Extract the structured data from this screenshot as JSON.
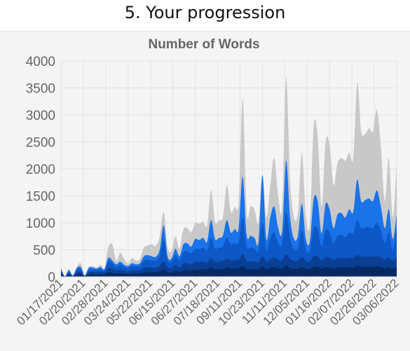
{
  "page": {
    "heading": "5. Your progression"
  },
  "chart_data": {
    "type": "area",
    "title": "Number of Words",
    "xlabel": "",
    "ylabel": "",
    "ylim": [
      0,
      4000
    ],
    "yticks": [
      0,
      500,
      1000,
      1500,
      2000,
      2500,
      3000,
      3500,
      4000
    ],
    "x_tick_labels": [
      "01/17/2021",
      "02/20/2021",
      "02/28/2021",
      "03/24/2021",
      "05/22/2021",
      "06/15/2021",
      "06/27/2021",
      "07/18/2021",
      "09/11/2021",
      "10/23/2021",
      "11/11/2021",
      "12/05/2021",
      "01/16/2022",
      "02/07/2022",
      "02/26/2022",
      "03/06/2022"
    ],
    "grid": true,
    "legend": "none",
    "stacked": false,
    "series": [
      {
        "color": "#c8c8c8",
        "values": [
          180,
          20,
          150,
          30,
          180,
          250,
          30,
          180,
          200,
          170,
          220,
          160,
          550,
          600,
          300,
          450,
          330,
          250,
          350,
          300,
          330,
          540,
          580,
          600,
          570,
          750,
          1200,
          550,
          480,
          750,
          520,
          880,
          900,
          820,
          1000,
          980,
          1020,
          950,
          1600,
          1020,
          1050,
          1100,
          1700,
          1200,
          1300,
          1400,
          3300,
          1200,
          1300,
          1250,
          1000,
          1900,
          1100,
          1700,
          2200,
          1500,
          1300,
          3700,
          1800,
          1100,
          1200,
          2300,
          1100,
          1000,
          2800,
          2600,
          1300,
          2500,
          2450,
          1700,
          2100,
          2200,
          2150,
          2300,
          2200,
          3600,
          2700,
          2650,
          2750,
          2700,
          3100,
          2400,
          1400,
          2200,
          1100,
          2100
        ],
        "name": ""
      },
      {
        "color": "#1a73e8",
        "values": [
          150,
          10,
          120,
          20,
          160,
          180,
          20,
          160,
          170,
          150,
          180,
          140,
          350,
          300,
          230,
          280,
          220,
          200,
          250,
          230,
          250,
          380,
          400,
          380,
          370,
          500,
          950,
          380,
          340,
          520,
          380,
          600,
          620,
          560,
          700,
          680,
          720,
          650,
          1050,
          700,
          720,
          760,
          1050,
          820,
          880,
          900,
          1850,
          780,
          760,
          720,
          650,
          1880,
          700,
          1100,
          1300,
          900,
          850,
          2150,
          1100,
          700,
          760,
          1350,
          700,
          650,
          1450,
          1400,
          800,
          1350,
          1250,
          900,
          1150,
          1180,
          1100,
          1250,
          1200,
          1800,
          1400,
          1420,
          1450,
          1400,
          1600,
          1300,
          900,
          1250,
          700,
          1150
        ],
        "name": ""
      },
      {
        "color": "#0d57c6",
        "values": [
          110,
          5,
          90,
          15,
          120,
          140,
          15,
          120,
          130,
          120,
          140,
          110,
          280,
          250,
          180,
          220,
          180,
          160,
          200,
          190,
          200,
          300,
          310,
          300,
          300,
          390,
          700,
          300,
          280,
          400,
          300,
          460,
          470,
          430,
          520,
          510,
          540,
          490,
          720,
          520,
          540,
          560,
          720,
          600,
          620,
          640,
          1100,
          560,
          540,
          520,
          480,
          1000,
          500,
          720,
          820,
          620,
          600,
          1200,
          720,
          500,
          540,
          860,
          500,
          480,
          900,
          880,
          560,
          860,
          820,
          620,
          760,
          780,
          740,
          820,
          800,
          1050,
          900,
          910,
          920,
          900,
          1000,
          860,
          620,
          820,
          500,
          900
        ],
        "name": ""
      },
      {
        "color": "#0a3f94",
        "values": [
          80,
          0,
          60,
          10,
          80,
          90,
          10,
          80,
          90,
          80,
          90,
          80,
          160,
          150,
          110,
          130,
          110,
          100,
          120,
          115,
          120,
          160,
          170,
          165,
          165,
          200,
          280,
          170,
          160,
          220,
          170,
          240,
          250,
          230,
          270,
          265,
          280,
          260,
          340,
          270,
          280,
          290,
          340,
          300,
          310,
          320,
          420,
          290,
          285,
          280,
          270,
          380,
          280,
          330,
          360,
          310,
          300,
          420,
          330,
          290,
          300,
          360,
          290,
          280,
          380,
          370,
          300,
          360,
          350,
          310,
          340,
          345,
          335,
          350,
          345,
          400,
          370,
          372,
          375,
          370,
          390,
          360,
          320,
          350,
          290,
          360
        ],
        "name": ""
      },
      {
        "color": "#052a63",
        "values": [
          40,
          0,
          30,
          5,
          40,
          45,
          5,
          40,
          45,
          40,
          45,
          40,
          80,
          75,
          55,
          65,
          55,
          50,
          60,
          58,
          60,
          80,
          85,
          82,
          82,
          100,
          130,
          85,
          80,
          110,
          85,
          120,
          125,
          115,
          135,
          132,
          140,
          130,
          170,
          135,
          140,
          145,
          170,
          150,
          155,
          160,
          200,
          145,
          142,
          140,
          135,
          190,
          140,
          165,
          180,
          155,
          150,
          210,
          165,
          145,
          150,
          180,
          145,
          140,
          190,
          185,
          150,
          180,
          175,
          155,
          170,
          172,
          168,
          175,
          172,
          200,
          185,
          186,
          188,
          185,
          195,
          180,
          160,
          175,
          145,
          180
        ],
        "name": ""
      }
    ]
  }
}
